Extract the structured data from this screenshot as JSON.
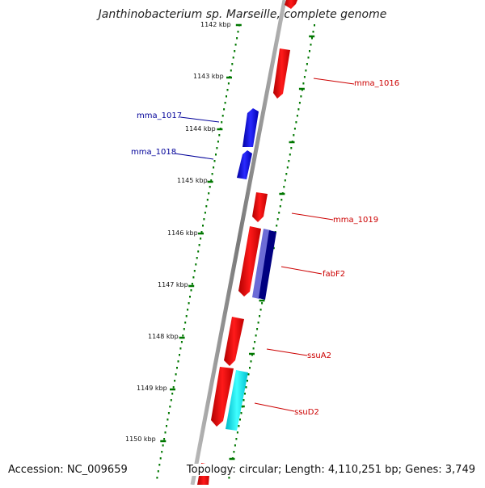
{
  "title": "Janthinobacterium sp. Marseille, complete genome",
  "accession": "Accession: NC_009659",
  "topology": "Topology: circular; Length: 4,110,251 bp; Genes: 3,749",
  "colors": {
    "forward_gene": "#ff0000",
    "reverse_gene": "#0000ff",
    "fabF2_inner": "#6a6ad0",
    "fabF2_outer": "#00008b",
    "ssuD2_track": "#00e5e5",
    "tick": "#007700",
    "backbone": "#8c8c8c",
    "label_red": "#cc0000",
    "label_blue": "#000099"
  },
  "kbp_labels": [
    "1142 kbp",
    "1143 kbp",
    "1144 kbp",
    "1145 kbp",
    "1146 kbp",
    "1147 kbp",
    "1148 kbp",
    "1149 kbp",
    "1150 kbp"
  ],
  "gene_labels": [
    {
      "text": "mma_1016",
      "color": "red"
    },
    {
      "text": "mma_1017",
      "color": "blue"
    },
    {
      "text": "mma_1018",
      "color": "blue"
    },
    {
      "text": "mma_1019",
      "color": "red"
    },
    {
      "text": "fabF2",
      "color": "red"
    },
    {
      "text": "ssuA2",
      "color": "red"
    },
    {
      "text": "ssuD2",
      "color": "red"
    }
  ]
}
